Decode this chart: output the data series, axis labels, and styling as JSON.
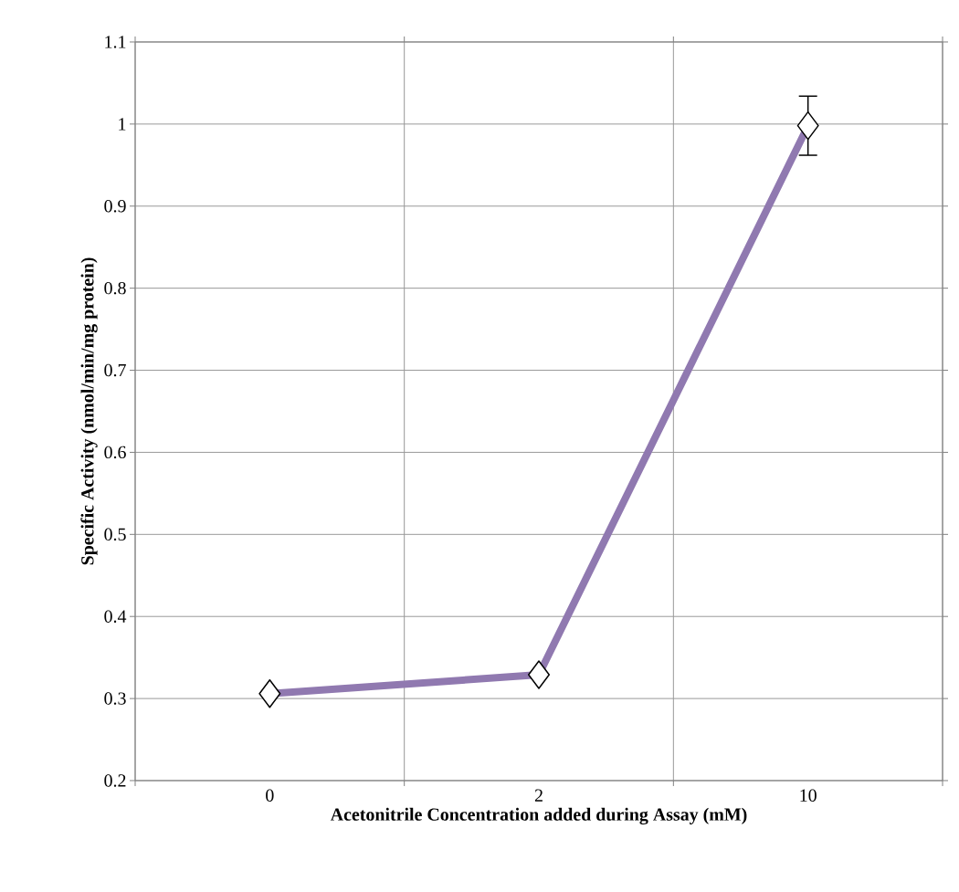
{
  "chart_data": {
    "type": "line",
    "xlabel": "Acetonitrile Concentration added during Assay (mM)",
    "ylabel": "Specific Activity (nmol/min/mg protein)",
    "categories": [
      "0",
      "2",
      "10"
    ],
    "series": [
      {
        "color": "#9079b0",
        "values": [
          0.306,
          0.329,
          0.998
        ],
        "errors": [
          null,
          null,
          0.036
        ]
      }
    ],
    "ylim": [
      0.2,
      1.1
    ],
    "yticks": [
      0.2,
      0.3,
      0.4,
      0.5,
      0.6,
      0.7,
      0.8,
      0.9,
      1,
      1.1
    ],
    "grid": true,
    "marker": "diamond",
    "line_style": "solid"
  }
}
